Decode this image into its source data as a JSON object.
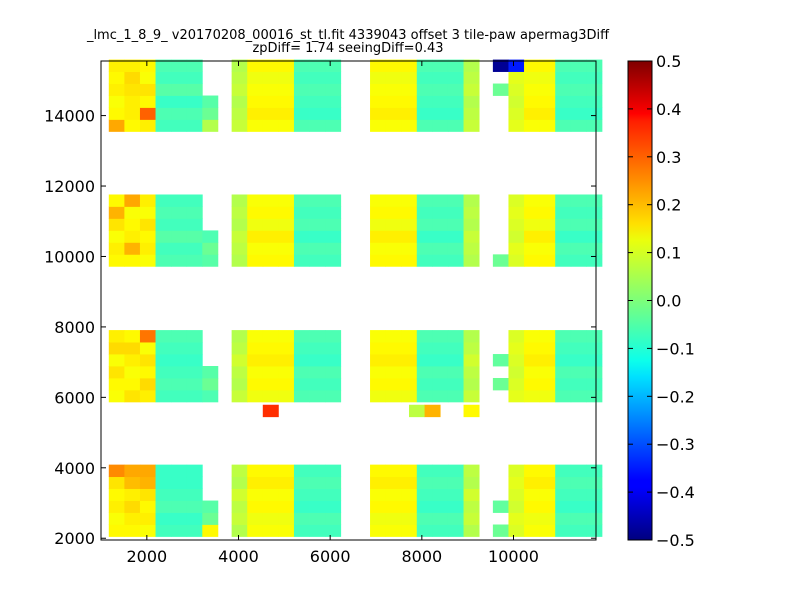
{
  "chart_data": {
    "type": "heatmap",
    "title": "_lmc_1_8_9_ v20170208_00016_st_tl.fit 4339043 offset 3 tile-paw apermag3Diff",
    "subtitle": "zpDiff= 1.74 seeingDiff=0.43",
    "colormap": "jet",
    "xlim": [
      1000,
      11800
    ],
    "ylim": [
      1950,
      15550
    ],
    "cell_size": [
      340,
      340
    ],
    "x_ticks": [
      2000,
      4000,
      6000,
      8000,
      10000
    ],
    "x_tick_labels": [
      "2000",
      "4000",
      "6000",
      "8000",
      "10000"
    ],
    "y_ticks": [
      2000,
      4000,
      6000,
      8000,
      10000,
      12000,
      14000
    ],
    "y_tick_labels": [
      "2000",
      "4000",
      "6000",
      "8000",
      "10000",
      "12000",
      "14000"
    ],
    "colorbar": {
      "vmin": -0.5,
      "vmax": 0.5,
      "ticks": [
        0.5,
        0.4,
        0.3,
        0.2,
        0.1,
        0.0,
        -0.1,
        -0.2,
        -0.3,
        -0.4,
        -0.5
      ],
      "tick_labels": [
        "0.5",
        "0.4",
        "0.3",
        "0.2",
        "0.1",
        "0.0",
        "−0.1",
        "−0.2",
        "−0.3",
        "−0.4",
        "−0.5"
      ]
    },
    "columns": [
      {
        "x": 1170,
        "bands": [
          [
            0.13,
            0.12,
            0.14,
            0.13,
            0.15,
            0.24
          ],
          [
            0.12,
            0.13,
            0.15,
            0.12,
            0.16,
            0.14
          ],
          [
            0.13,
            0.14,
            0.12,
            0.15,
            0.2,
            0.13
          ],
          [
            0.21,
            0.13,
            0.12,
            0.14,
            0.13,
            0.14
          ]
        ]
      },
      {
        "x": 1510,
        "bands": [
          [
            0.13,
            0.14,
            0.16,
            0.14,
            0.19,
            0.21
          ],
          [
            0.15,
            0.13,
            0.12,
            0.14,
            0.16,
            0.13
          ],
          [
            0.13,
            0.2,
            0.14,
            0.13,
            0.12,
            0.21
          ],
          [
            0.13,
            0.14,
            0.14,
            0.15,
            0.16,
            0.14
          ]
        ]
      },
      {
        "x": 1850,
        "bands": [
          [
            0.12,
            0.14,
            0.13,
            0.15,
            0.2,
            0.21
          ],
          [
            0.14,
            0.16,
            0.13,
            0.15,
            0.12,
            0.26
          ],
          [
            0.12,
            0.14,
            0.13,
            0.15,
            0.12,
            0.14
          ],
          [
            0.14,
            0.28,
            0.13,
            0.15,
            0.12,
            0.13
          ]
        ]
      },
      {
        "x": 2190,
        "bands": [
          [
            -0.06,
            -0.07,
            -0.05,
            -0.06,
            -0.07,
            -0.07
          ],
          [
            -0.06,
            -0.05,
            -0.06,
            -0.07,
            -0.06,
            -0.05
          ],
          [
            -0.05,
            -0.06,
            -0.04,
            -0.06,
            -0.05,
            -0.06
          ],
          [
            -0.06,
            -0.05,
            -0.07,
            -0.04,
            -0.06,
            -0.05
          ]
        ]
      },
      {
        "x": 2530,
        "bands": [
          [
            -0.06,
            -0.07,
            -0.05,
            -0.06,
            -0.07,
            -0.07
          ],
          [
            -0.06,
            -0.05,
            -0.06,
            -0.07,
            -0.06,
            -0.05
          ],
          [
            -0.05,
            -0.06,
            -0.04,
            -0.06,
            -0.05,
            -0.06
          ],
          [
            -0.06,
            -0.05,
            -0.07,
            -0.04,
            -0.06,
            -0.05
          ]
        ]
      },
      {
        "x": 2870,
        "bands": [
          [
            -0.06,
            -0.07,
            -0.05,
            -0.06,
            -0.07,
            -0.07
          ],
          [
            -0.06,
            -0.05,
            -0.06,
            -0.07,
            -0.06,
            -0.05
          ],
          [
            -0.05,
            -0.06,
            -0.04,
            -0.06,
            -0.05,
            -0.06
          ],
          [
            -0.06,
            -0.05,
            -0.07,
            -0.04,
            -0.06,
            -0.05
          ]
        ]
      },
      {
        "x": 3210,
        "bands": [
          [
            0.13,
            -0.02,
            -0.04,
            null,
            null,
            null
          ],
          [
            -0.05,
            -0.02,
            -0.04,
            null,
            null,
            null
          ],
          [
            -0.04,
            -0.02,
            -0.05,
            null,
            null,
            null
          ],
          [
            0.05,
            -0.02,
            -0.04,
            null,
            null,
            null
          ]
        ]
      },
      {
        "x": 3850,
        "bands": [
          [
            0.05,
            0.07,
            0.06,
            0.08,
            0.05,
            0.06
          ],
          [
            0.07,
            0.05,
            0.06,
            0.08,
            0.06,
            0.05
          ],
          [
            0.05,
            0.06,
            0.07,
            0.05,
            0.06,
            0.05
          ],
          [
            0.07,
            0.06,
            0.05,
            0.07,
            0.06,
            0.05
          ]
        ]
      },
      {
        "x": 4190,
        "bands": [
          [
            0.12,
            0.11,
            0.13,
            0.12,
            0.14,
            0.13
          ],
          [
            0.11,
            0.13,
            0.12,
            0.14,
            0.13,
            0.12
          ],
          [
            0.13,
            0.12,
            0.14,
            0.11,
            0.13,
            0.12
          ],
          [
            0.12,
            0.14,
            0.13,
            0.12,
            0.11,
            0.13
          ]
        ]
      },
      {
        "x": 4530,
        "bands": [
          [
            0.12,
            0.11,
            0.13,
            0.12,
            0.14,
            0.13
          ],
          [
            0.11,
            0.13,
            0.12,
            0.14,
            0.13,
            0.12
          ],
          [
            0.13,
            0.12,
            0.14,
            0.11,
            0.13,
            0.12
          ],
          [
            0.12,
            0.14,
            0.13,
            0.12,
            0.11,
            0.13
          ]
        ]
      },
      {
        "x": 4870,
        "bands": [
          [
            0.12,
            0.11,
            0.13,
            0.12,
            0.14,
            0.13
          ],
          [
            0.11,
            0.13,
            0.12,
            0.14,
            0.13,
            0.12
          ],
          [
            0.13,
            0.12,
            0.14,
            0.11,
            0.13,
            0.12
          ],
          [
            0.12,
            0.14,
            0.13,
            0.12,
            0.11,
            0.13
          ]
        ]
      },
      {
        "x": 5210,
        "bands": [
          [
            -0.06,
            -0.05,
            -0.07,
            -0.06,
            -0.05,
            -0.06
          ],
          [
            -0.05,
            -0.06,
            -0.05,
            -0.07,
            -0.06,
            -0.05
          ],
          [
            -0.06,
            -0.05,
            -0.07,
            -0.05,
            -0.06,
            -0.05
          ],
          [
            -0.05,
            -0.07,
            -0.06,
            -0.05,
            -0.06,
            -0.05
          ]
        ]
      },
      {
        "x": 5550,
        "bands": [
          [
            -0.06,
            -0.05,
            -0.07,
            -0.06,
            -0.05,
            -0.06
          ],
          [
            -0.05,
            -0.06,
            -0.05,
            -0.07,
            -0.06,
            -0.05
          ],
          [
            -0.06,
            -0.05,
            -0.07,
            -0.05,
            -0.06,
            -0.05
          ],
          [
            -0.05,
            -0.07,
            -0.06,
            -0.05,
            -0.06,
            -0.05
          ]
        ]
      },
      {
        "x": 5890,
        "bands": [
          [
            -0.06,
            -0.05,
            -0.07,
            -0.06,
            -0.05,
            -0.06
          ],
          [
            -0.05,
            -0.06,
            -0.05,
            -0.07,
            -0.06,
            -0.05
          ],
          [
            -0.06,
            -0.05,
            -0.07,
            -0.05,
            -0.06,
            -0.05
          ],
          [
            -0.05,
            -0.07,
            -0.06,
            -0.05,
            -0.06,
            -0.05
          ]
        ]
      },
      {
        "x": 6870,
        "bands": [
          [
            0.12,
            0.11,
            0.13,
            0.12,
            0.14,
            0.13
          ],
          [
            0.11,
            0.13,
            0.12,
            0.14,
            0.13,
            0.12
          ],
          [
            0.13,
            0.12,
            0.14,
            0.11,
            0.13,
            0.12
          ],
          [
            0.12,
            0.14,
            0.13,
            0.12,
            0.11,
            0.13
          ]
        ]
      },
      {
        "x": 7210,
        "bands": [
          [
            0.12,
            0.11,
            0.13,
            0.12,
            0.14,
            0.13
          ],
          [
            0.11,
            0.13,
            0.12,
            0.14,
            0.13,
            0.12
          ],
          [
            0.13,
            0.12,
            0.14,
            0.11,
            0.13,
            0.12
          ],
          [
            0.12,
            0.14,
            0.13,
            0.12,
            0.11,
            0.13
          ]
        ]
      },
      {
        "x": 7550,
        "bands": [
          [
            0.12,
            0.11,
            0.13,
            0.12,
            0.14,
            0.13
          ],
          [
            0.11,
            0.13,
            0.12,
            0.14,
            0.13,
            0.12
          ],
          [
            0.13,
            0.12,
            0.14,
            0.11,
            0.13,
            0.12
          ],
          [
            0.12,
            0.14,
            0.13,
            0.12,
            0.11,
            0.13
          ]
        ]
      },
      {
        "x": 7890,
        "bands": [
          [
            -0.06,
            -0.05,
            -0.07,
            -0.06,
            -0.05,
            -0.06
          ],
          [
            -0.05,
            -0.06,
            -0.05,
            -0.07,
            -0.06,
            -0.05
          ],
          [
            -0.06,
            -0.05,
            -0.07,
            -0.05,
            -0.06,
            -0.05
          ],
          [
            -0.05,
            -0.07,
            -0.06,
            -0.05,
            -0.06,
            -0.05
          ]
        ]
      },
      {
        "x": 8230,
        "bands": [
          [
            -0.06,
            -0.05,
            -0.07,
            -0.06,
            -0.05,
            -0.06
          ],
          [
            -0.05,
            -0.06,
            -0.05,
            -0.07,
            -0.06,
            -0.05
          ],
          [
            -0.06,
            -0.05,
            -0.07,
            -0.05,
            -0.06,
            -0.05
          ],
          [
            -0.05,
            -0.07,
            -0.06,
            -0.05,
            -0.06,
            -0.05
          ]
        ]
      },
      {
        "x": 8570,
        "bands": [
          [
            -0.06,
            -0.05,
            -0.07,
            -0.06,
            -0.05,
            -0.06
          ],
          [
            -0.05,
            -0.06,
            -0.05,
            -0.07,
            -0.06,
            -0.05
          ],
          [
            -0.06,
            -0.05,
            -0.07,
            -0.05,
            -0.06,
            -0.05
          ],
          [
            -0.05,
            -0.07,
            -0.06,
            -0.05,
            -0.06,
            -0.05
          ]
        ]
      },
      {
        "x": 8910,
        "bands": [
          [
            0.05,
            0.07,
            0.06,
            0.08,
            0.05,
            0.06
          ],
          [
            0.07,
            0.05,
            0.06,
            0.08,
            0.06,
            0.05
          ],
          [
            0.05,
            0.06,
            0.07,
            0.05,
            0.06,
            0.05
          ],
          [
            0.07,
            0.06,
            0.05,
            0.07,
            0.06,
            0.05
          ]
        ]
      },
      {
        "x": 9550,
        "bands": [
          [
            -0.02,
            null,
            -0.03,
            null,
            null,
            null
          ],
          [
            null,
            -0.02,
            null,
            -0.03,
            null,
            null
          ],
          [
            -0.02,
            null,
            null,
            null,
            null,
            null
          ],
          [
            null,
            null,
            null,
            -0.02,
            null,
            -0.48
          ]
        ]
      },
      {
        "x": 9890,
        "bands": [
          [
            0.09,
            0.1,
            0.08,
            0.09,
            0.1,
            0.09
          ],
          [
            0.1,
            0.09,
            0.08,
            0.09,
            0.1,
            0.09
          ],
          [
            0.09,
            0.1,
            0.08,
            0.09,
            0.1,
            0.09
          ],
          [
            0.1,
            0.09,
            0.08,
            0.09,
            0.1,
            -0.35
          ]
        ]
      },
      {
        "x": 10230,
        "bands": [
          [
            0.12,
            0.11,
            0.13,
            0.12,
            0.14,
            0.13
          ],
          [
            0.11,
            0.13,
            0.12,
            0.14,
            0.13,
            0.12
          ],
          [
            0.13,
            0.12,
            0.14,
            0.11,
            0.13,
            0.12
          ],
          [
            0.12,
            0.14,
            0.13,
            0.12,
            0.11,
            0.13
          ]
        ]
      },
      {
        "x": 10570,
        "bands": [
          [
            0.12,
            0.11,
            0.13,
            0.12,
            0.14,
            0.13
          ],
          [
            0.11,
            0.13,
            0.12,
            0.14,
            0.13,
            0.12
          ],
          [
            0.13,
            0.12,
            0.14,
            0.11,
            0.13,
            0.12
          ],
          [
            0.12,
            0.14,
            0.13,
            0.12,
            0.11,
            0.13
          ]
        ]
      },
      {
        "x": 10910,
        "bands": [
          [
            -0.06,
            -0.05,
            -0.07,
            -0.06,
            -0.05,
            -0.06
          ],
          [
            -0.05,
            -0.06,
            -0.05,
            -0.07,
            -0.06,
            -0.05
          ],
          [
            -0.06,
            -0.05,
            -0.07,
            -0.05,
            -0.06,
            -0.05
          ],
          [
            -0.05,
            -0.07,
            -0.06,
            -0.05,
            -0.06,
            -0.05
          ]
        ]
      },
      {
        "x": 11250,
        "bands": [
          [
            -0.06,
            -0.05,
            -0.07,
            -0.06,
            -0.05,
            -0.06
          ],
          [
            -0.05,
            -0.06,
            -0.05,
            -0.07,
            -0.06,
            -0.05
          ],
          [
            -0.06,
            -0.05,
            -0.07,
            -0.05,
            -0.06,
            -0.05
          ],
          [
            -0.05,
            -0.07,
            -0.06,
            -0.05,
            -0.06,
            -0.05
          ]
        ]
      },
      {
        "x": 11590,
        "bands": [
          [
            -0.06,
            -0.05,
            -0.07,
            -0.06,
            -0.05,
            -0.06
          ],
          [
            -0.05,
            -0.06,
            -0.05,
            -0.07,
            -0.06,
            -0.05
          ],
          [
            -0.06,
            -0.05,
            -0.07,
            -0.05,
            -0.06,
            -0.05
          ],
          [
            -0.05,
            -0.07,
            -0.06,
            -0.05,
            -0.06,
            -0.05
          ]
        ]
      }
    ],
    "band_row_y": [
      [
        2050,
        2390,
        2730,
        3070,
        3410,
        3750
      ],
      [
        5870,
        6210,
        6550,
        6890,
        7230,
        7570
      ],
      [
        9720,
        10060,
        10400,
        10740,
        11080,
        11420
      ],
      [
        13550,
        13890,
        14230,
        14570,
        14910,
        15250
      ]
    ],
    "extra_cells": [
      {
        "x": 4530,
        "y": 5450,
        "value": 0.33
      },
      {
        "x": 7720,
        "y": 5450,
        "value": 0.06
      },
      {
        "x": 8060,
        "y": 5450,
        "value": 0.2
      },
      {
        "x": 8910,
        "y": 5450,
        "value": 0.13
      }
    ]
  }
}
